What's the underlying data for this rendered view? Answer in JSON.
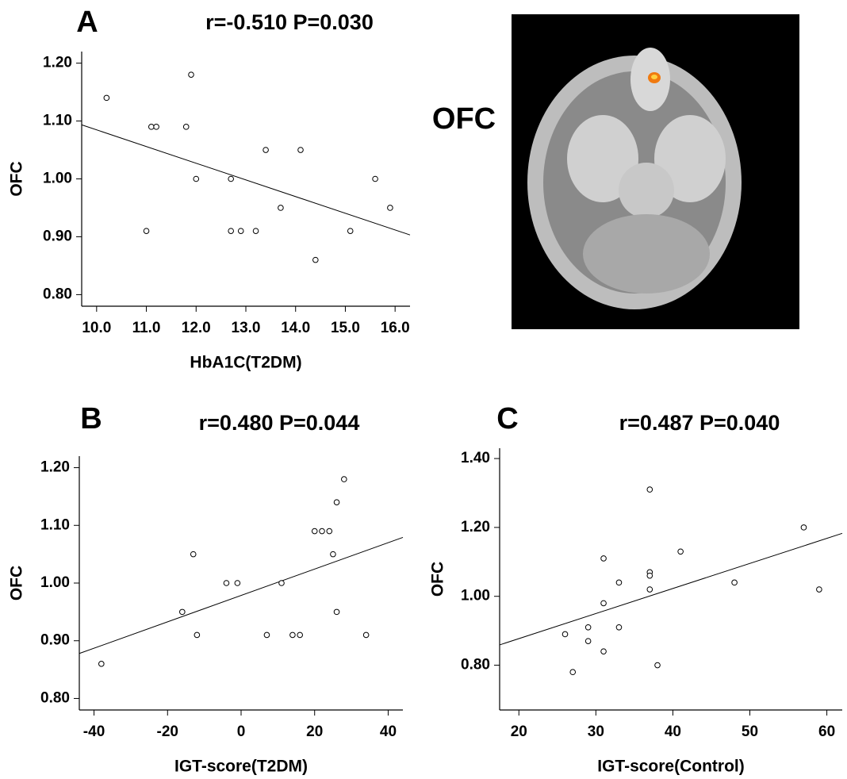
{
  "chart_data": [
    {
      "type": "scatter",
      "panel_label": "A",
      "title": "r=-0.510 P=0.030",
      "x_label": "HbA1C(T2DM)",
      "y_label": "OFC",
      "x": [
        10.2,
        11.0,
        11.1,
        11.2,
        11.9,
        11.8,
        12.0,
        12.7,
        12.7,
        12.9,
        13.2,
        13.4,
        13.7,
        14.1,
        14.4,
        15.1,
        15.6,
        15.9
      ],
      "values": [
        1.14,
        0.91,
        1.09,
        1.09,
        1.18,
        1.09,
        1.0,
        1.0,
        0.91,
        0.91,
        0.91,
        1.05,
        0.95,
        1.05,
        0.86,
        0.91,
        1.0,
        0.95
      ],
      "color": "#000000",
      "trendline": true,
      "xlim": [
        9.7,
        16.3
      ],
      "xticks": [
        {
          "value": 10,
          "label": "10.0"
        },
        {
          "value": 11,
          "label": "11.0"
        },
        {
          "value": 12,
          "label": "12.0"
        },
        {
          "value": 13,
          "label": "13.0"
        },
        {
          "value": 14,
          "label": "14.0"
        },
        {
          "value": 15,
          "label": "15.0"
        },
        {
          "value": 16,
          "label": "16.0"
        }
      ],
      "ylim": [
        0.78,
        1.22
      ],
      "yticks": [
        {
          "value": 0.8,
          "label": "0.80"
        },
        {
          "value": 0.9,
          "label": "0.90"
        },
        {
          "value": 1.0,
          "label": "1.00"
        },
        {
          "value": 1.1,
          "label": "1.10"
        },
        {
          "value": 1.2,
          "label": "1.20"
        }
      ]
    },
    {
      "type": "scatter",
      "panel_label": "B",
      "title": "r=0.480 P=0.044",
      "x_label": "IGT-score(T2DM)",
      "y_label": "OFC",
      "x": [
        -38,
        -16,
        -12,
        -13,
        -4,
        -1,
        7,
        11,
        14,
        16,
        20,
        22,
        24,
        25,
        26,
        26,
        28,
        34
      ],
      "values": [
        0.86,
        0.95,
        0.91,
        1.05,
        1.0,
        1.0,
        0.91,
        1.0,
        0.91,
        0.91,
        1.09,
        1.09,
        1.09,
        1.05,
        1.14,
        0.95,
        1.18,
        0.91
      ],
      "color": "#000000",
      "trendline": true,
      "xlim": [
        -44,
        44
      ],
      "xticks": [
        -40,
        -20,
        0,
        20,
        40
      ],
      "ylim": [
        0.78,
        1.22
      ],
      "yticks": [
        {
          "value": 0.8,
          "label": "0.80"
        },
        {
          "value": 0.9,
          "label": "0.90"
        },
        {
          "value": 1.0,
          "label": "1.00"
        },
        {
          "value": 1.1,
          "label": "1.10"
        },
        {
          "value": 1.2,
          "label": "1.20"
        }
      ]
    },
    {
      "type": "scatter",
      "panel_label": "C",
      "title": "r=0.487 P=0.040",
      "x_label": "IGT-score(Control)",
      "y_label": "OFC",
      "x": [
        26,
        27,
        29,
        29,
        31,
        31,
        31,
        33,
        33,
        37,
        37,
        37,
        37,
        38,
        41,
        48,
        57,
        59
      ],
      "values": [
        0.89,
        0.78,
        0.91,
        0.87,
        0.98,
        1.11,
        0.84,
        1.04,
        0.91,
        1.31,
        1.07,
        1.06,
        1.02,
        0.8,
        1.13,
        1.04,
        1.2,
        1.02
      ],
      "color": "#000000",
      "trendline": true,
      "xlim": [
        17.5,
        62
      ],
      "xticks": [
        20,
        30,
        40,
        50,
        60
      ],
      "ylim": [
        0.67,
        1.43
      ],
      "yticks": [
        {
          "value": 0.8,
          "label": "0.80"
        },
        {
          "value": 1.0,
          "label": "1.00"
        },
        {
          "value": 1.2,
          "label": "1.20"
        },
        {
          "value": 1.4,
          "label": "1.40"
        }
      ]
    }
  ],
  "image": {
    "label": "OFC"
  }
}
